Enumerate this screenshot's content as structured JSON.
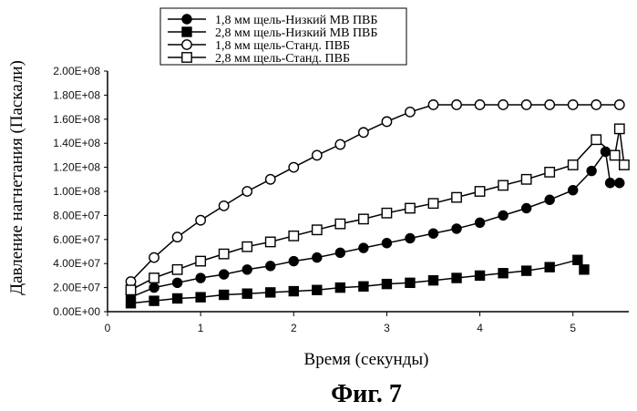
{
  "chart_data": {
    "type": "line",
    "title": "",
    "caption": "Фиг. 7",
    "xlabel": "Время (секунды)",
    "ylabel": "Давление нагнетания (Паскали)",
    "xlim": [
      0,
      5.6
    ],
    "ylim": [
      0,
      200000000
    ],
    "x_ticks": [
      0,
      1,
      2,
      3,
      4,
      5
    ],
    "x_tick_labels": [
      "0",
      "1",
      "2",
      "3",
      "4",
      "5"
    ],
    "y_ticks": [
      0,
      20000000,
      40000000,
      60000000,
      80000000,
      100000000,
      120000000,
      140000000,
      160000000,
      180000000,
      200000000
    ],
    "y_tick_labels": [
      "0.00E+00",
      "2.00E+07",
      "4.00E+07",
      "6.00E+07",
      "8.00E+07",
      "1.00E+08",
      "1.20E+08",
      "1.40E+08",
      "1.60E+08",
      "1.80E+08",
      "2.00E+08"
    ],
    "grid": false,
    "legend_position": "top-center",
    "series": [
      {
        "name": "1,8 мм щель-Низкий МВ ПВБ",
        "marker": "filled-circle",
        "x": [
          0.25,
          0.5,
          0.75,
          1.0,
          1.25,
          1.5,
          1.75,
          2.0,
          2.25,
          2.5,
          2.75,
          3.0,
          3.25,
          3.5,
          3.75,
          4.0,
          4.25,
          4.5,
          4.75,
          5.0,
          5.2,
          5.35,
          5.4,
          5.5
        ],
        "y": [
          12000000,
          20000000,
          24000000,
          28000000,
          31000000,
          35000000,
          38000000,
          42000000,
          45000000,
          49000000,
          53000000,
          57000000,
          61000000,
          65000000,
          69000000,
          74000000,
          80000000,
          86000000,
          93000000,
          101000000,
          117000000,
          133000000,
          107000000,
          107000000
        ]
      },
      {
        "name": "2,8 мм щель-Низкий МВ ПВБ",
        "marker": "filled-square",
        "x": [
          0.25,
          0.5,
          0.75,
          1.0,
          1.25,
          1.5,
          1.75,
          2.0,
          2.25,
          2.5,
          2.75,
          3.0,
          3.25,
          3.5,
          3.75,
          4.0,
          4.25,
          4.5,
          4.75,
          5.05,
          5.12
        ],
        "y": [
          7000000,
          9000000,
          11000000,
          12000000,
          14000000,
          15000000,
          16000000,
          17000000,
          18000000,
          20000000,
          21000000,
          23000000,
          24000000,
          26000000,
          28000000,
          30000000,
          32000000,
          34000000,
          37000000,
          43000000,
          35000000
        ]
      },
      {
        "name": "1,8 мм щель-Станд. ПВБ",
        "marker": "open-circle",
        "x": [
          0.25,
          0.5,
          0.75,
          1.0,
          1.25,
          1.5,
          1.75,
          2.0,
          2.25,
          2.5,
          2.75,
          3.0,
          3.25,
          3.5,
          3.75,
          4.0,
          4.25,
          4.5,
          4.75,
          5.0,
          5.25,
          5.5
        ],
        "y": [
          25000000,
          45000000,
          62000000,
          76000000,
          88000000,
          100000000,
          110000000,
          120000000,
          130000000,
          139000000,
          149000000,
          158000000,
          166000000,
          172000000,
          172000000,
          172000000,
          172000000,
          172000000,
          172000000,
          172000000,
          172000000,
          172000000
        ]
      },
      {
        "name": "2,8 мм щель-Станд. ПВБ",
        "marker": "open-square",
        "x": [
          0.25,
          0.5,
          0.75,
          1.0,
          1.25,
          1.5,
          1.75,
          2.0,
          2.25,
          2.5,
          2.75,
          3.0,
          3.25,
          3.5,
          3.75,
          4.0,
          4.25,
          4.5,
          4.75,
          5.0,
          5.25,
          5.45,
          5.5,
          5.55
        ],
        "y": [
          18000000,
          28000000,
          35000000,
          42000000,
          48000000,
          54000000,
          58000000,
          63000000,
          68000000,
          73000000,
          77000000,
          82000000,
          86000000,
          90000000,
          95000000,
          100000000,
          105000000,
          110000000,
          116000000,
          122000000,
          143000000,
          130000000,
          152000000,
          122000000
        ]
      }
    ]
  }
}
